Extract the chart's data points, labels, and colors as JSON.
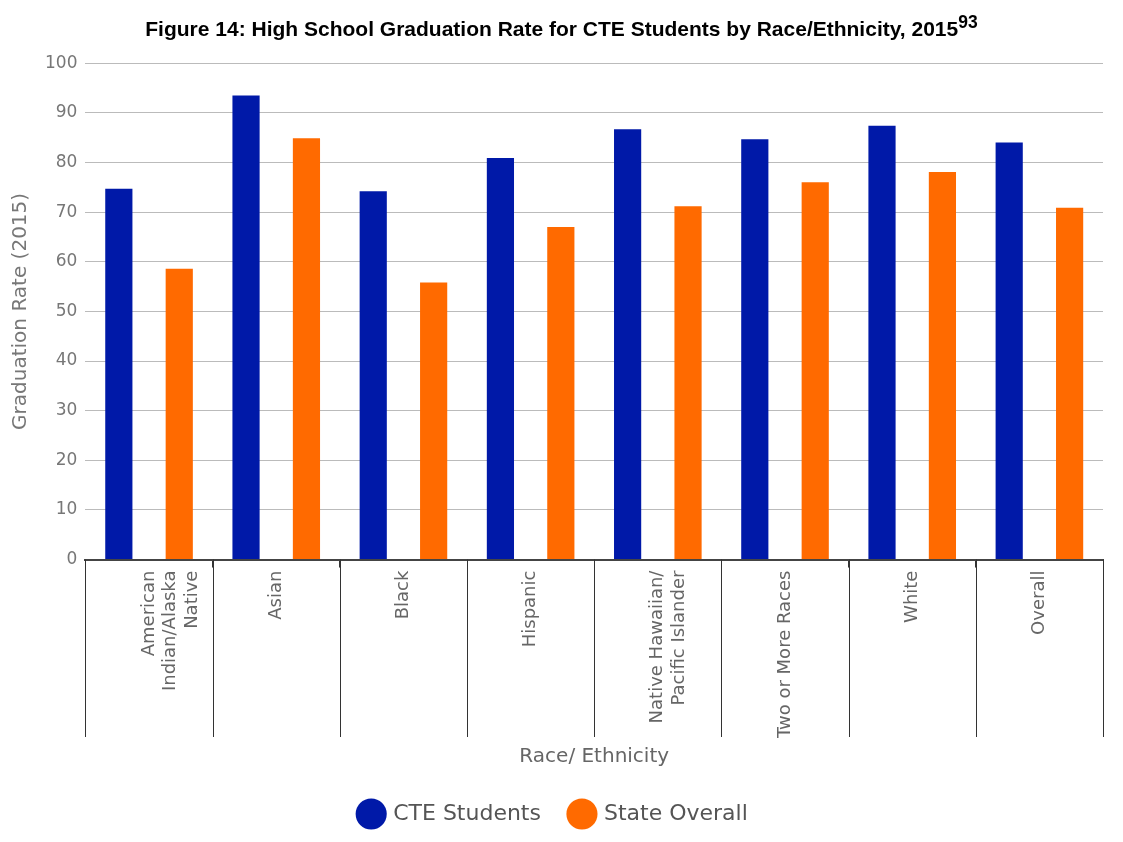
{
  "chart_data": {
    "type": "bar",
    "title": "Figure 14: High School Graduation Rate for CTE Students by Race/Ethnicity, 2015$^{93}$",
    "xlabel": "Race/ Ethnicity",
    "ylabel": "Graduation Rate (2015)",
    "categories": [
      "American Indian/Alaska Native",
      "Asian",
      "Black",
      "Hispanic",
      "Native Hawaiian/ Pacific Islander",
      "Two or More Races",
      "White",
      "Overall"
    ],
    "series": [
      {
        "name": "CTE Students",
        "color": "#0019a8",
        "values": [
          74.7,
          93.5,
          74.2,
          80.9,
          86.7,
          84.7,
          87.4,
          84.0
        ]
      },
      {
        "name": "State Overall",
        "color": "#ff6a00",
        "values": [
          58.6,
          84.9,
          55.8,
          67.0,
          71.2,
          76.0,
          78.1,
          70.9
        ]
      }
    ],
    "ylim": [
      0,
      100
    ],
    "yticks": [
      0,
      10,
      20,
      30,
      40,
      50,
      60,
      70,
      80,
      90,
      100
    ],
    "grid": "y",
    "legend": "bottom"
  }
}
